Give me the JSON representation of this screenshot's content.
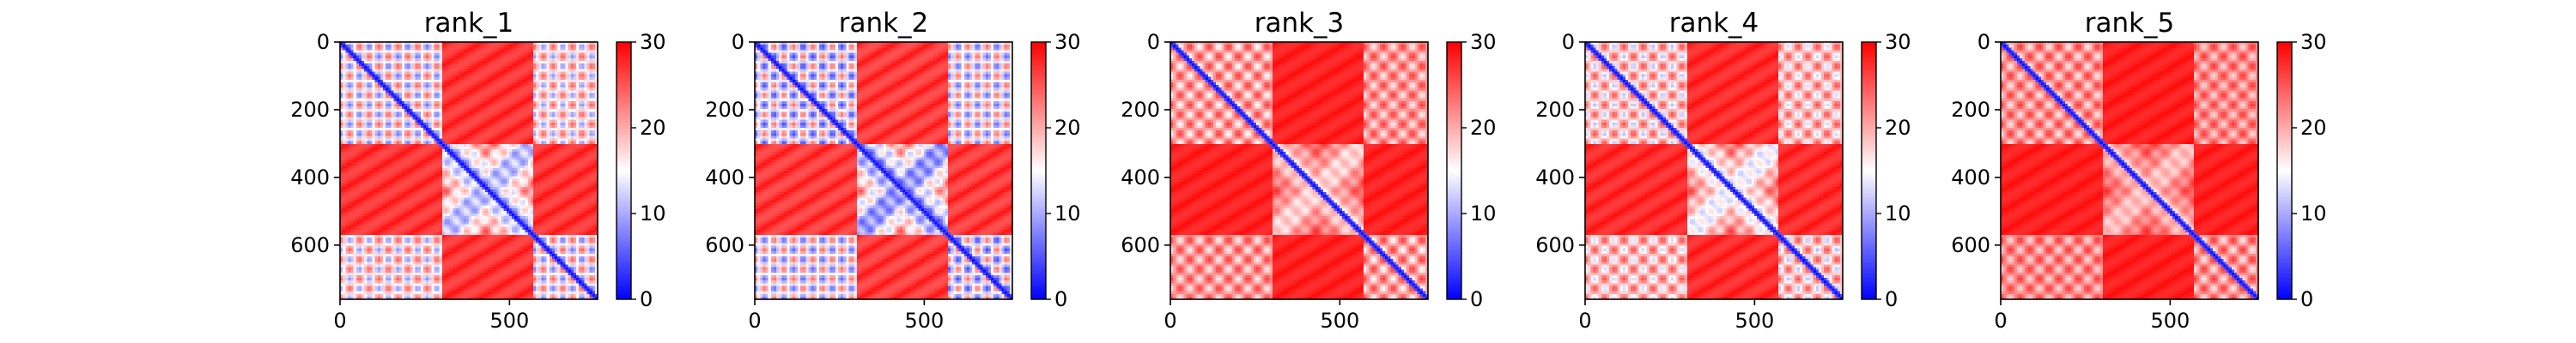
{
  "chart_data": {
    "type": "heatmap",
    "colormap": "bwr",
    "color_scale": {
      "min": 0,
      "max": 30,
      "ticks": [
        0,
        10,
        20,
        30
      ],
      "tick_labels": [
        "0",
        "10",
        "20",
        "30"
      ]
    },
    "colors": {
      "low": "#0000ff",
      "mid": "#ffffff",
      "high": "#ff0000"
    },
    "axis": {
      "range": [
        0,
        760
      ],
      "x_ticks": [
        0,
        500
      ],
      "x_tick_labels": [
        "0",
        "500"
      ],
      "y_ticks": [
        0,
        200,
        400,
        600
      ],
      "y_tick_labels": [
        "0",
        "200",
        "400",
        "600"
      ]
    },
    "matrix_structure": {
      "blocks": [
        [
          0,
          300
        ],
        [
          300,
          570
        ],
        [
          570,
          760
        ]
      ],
      "description": "symmetric distance matrix; blue diagonal and intra-domain blocks, red inter-domain regions"
    },
    "panels": [
      {
        "title": "rank_1",
        "block_contrast": 0.85
      },
      {
        "title": "rank_2",
        "block_contrast": 0.95
      },
      {
        "title": "rank_3",
        "block_contrast": 0.55
      },
      {
        "title": "rank_4",
        "block_contrast": 0.7
      },
      {
        "title": "rank_5",
        "block_contrast": 0.5
      }
    ]
  }
}
